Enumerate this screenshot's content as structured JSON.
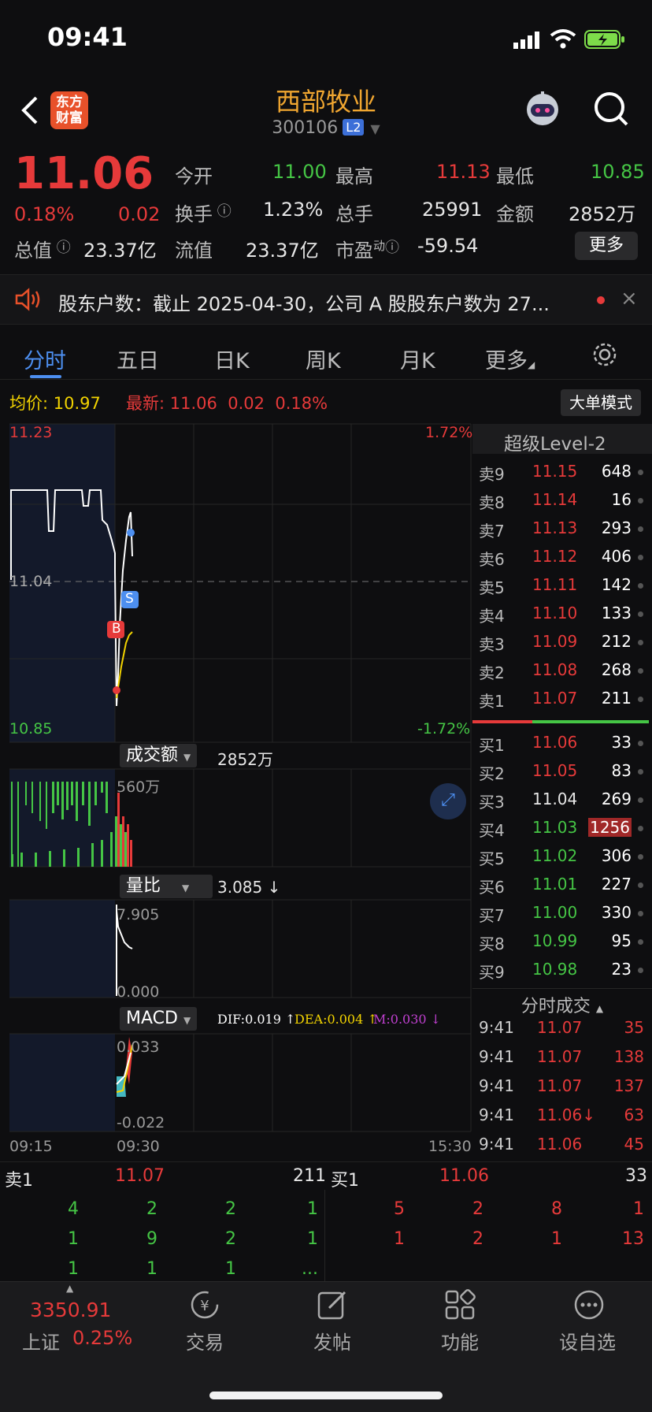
{
  "status": {
    "time": "09:41"
  },
  "header": {
    "logo_text": "东方财富",
    "title": "西部牧业",
    "code": "300106",
    "badge": "L2"
  },
  "quote": {
    "price": "11.06",
    "change_pct": "0.18%",
    "change": "0.02",
    "open_label": "今开",
    "open": "11.00",
    "high_label": "最高",
    "high": "11.13",
    "low_label": "最低",
    "low": "10.85",
    "turnover_label": "换手",
    "turnover": "1.23%",
    "volume_label": "总手",
    "volume": "25991",
    "amount_label": "金额",
    "amount": "2852万",
    "mktcap_label": "总值",
    "mktcap": "23.37亿",
    "float_label": "流值",
    "float": "23.37亿",
    "pe_label": "市盈",
    "pe_sup": "动",
    "pe": "-59.54",
    "more": "更多"
  },
  "notice": {
    "text": "股东户数：截止 2025-04-30，公司 A 股股东户数为 27..."
  },
  "tabs": [
    "分时",
    "五日",
    "日K",
    "周K",
    "月K",
    "更多"
  ],
  "infobar": {
    "avg_label": "均价:",
    "avg": "10.97",
    "latest_label": "最新:",
    "latest": "11.06",
    "chg": "0.02",
    "pct": "0.18%",
    "mode_btn": "大单模式"
  },
  "chart": {
    "y_top": "11.23",
    "y_mid": "11.04",
    "y_bot": "10.85",
    "pct_top": "1.72%",
    "pct_bot": "-1.72%",
    "vol_selector": "成交额",
    "vol_value": "2852万",
    "vol_axis": "560万",
    "ratio_selector": "量比",
    "ratio_value": "3.085 ↓",
    "ratio_top": "7.905",
    "ratio_bot": "0.000",
    "macd_selector": "MACD",
    "dif": "DIF:0.019 ↑",
    "dea": "DEA:0.004 ↑",
    "m": "M:0.030 ↓",
    "macd_top": "0.033",
    "macd_bot": "-0.022",
    "t_start": "09:15",
    "t_open": "09:30",
    "t_end": "15:30",
    "marker_b": "B",
    "marker_s": "S"
  },
  "level2": {
    "title": "超级Level-2",
    "asks": [
      {
        "label": "卖9",
        "price": "11.15",
        "vol": "648"
      },
      {
        "label": "卖8",
        "price": "11.14",
        "vol": "16"
      },
      {
        "label": "卖7",
        "price": "11.13",
        "vol": "293"
      },
      {
        "label": "卖6",
        "price": "11.12",
        "vol": "406"
      },
      {
        "label": "卖5",
        "price": "11.11",
        "vol": "142"
      },
      {
        "label": "卖4",
        "price": "11.10",
        "vol": "133"
      },
      {
        "label": "卖3",
        "price": "11.09",
        "vol": "212"
      },
      {
        "label": "卖2",
        "price": "11.08",
        "vol": "268"
      },
      {
        "label": "卖1",
        "price": "11.07",
        "vol": "211"
      }
    ],
    "bids": [
      {
        "label": "买1",
        "price": "11.06",
        "vol": "33"
      },
      {
        "label": "买2",
        "price": "11.05",
        "vol": "83"
      },
      {
        "label": "买3",
        "price": "11.04",
        "vol": "269"
      },
      {
        "label": "买4",
        "price": "11.03",
        "vol": "1256"
      },
      {
        "label": "买5",
        "price": "11.02",
        "vol": "306"
      },
      {
        "label": "买6",
        "price": "11.01",
        "vol": "227"
      },
      {
        "label": "买7",
        "price": "11.00",
        "vol": "330"
      },
      {
        "label": "买8",
        "price": "10.99",
        "vol": "95"
      },
      {
        "label": "买9",
        "price": "10.98",
        "vol": "23"
      }
    ],
    "ticks_title": "分时成交",
    "ticks": [
      {
        "t": "9:41",
        "p": "11.07",
        "v": "35"
      },
      {
        "t": "9:41",
        "p": "11.07",
        "v": "138"
      },
      {
        "t": "9:41",
        "p": "11.07",
        "v": "137"
      },
      {
        "t": "9:41",
        "p": "11.06↓",
        "v": "63"
      },
      {
        "t": "9:41",
        "p": "11.06",
        "v": "45"
      }
    ]
  },
  "queue": {
    "sell_label": "卖1",
    "sell_price": "11.07",
    "sell_vol": "211",
    "buy_label": "买1",
    "buy_price": "11.06",
    "buy_vol": "33",
    "sell_rows": [
      [
        "4",
        "2",
        "2",
        "1"
      ],
      [
        "1",
        "9",
        "2",
        "1"
      ],
      [
        "1",
        "1",
        "1",
        "..."
      ]
    ],
    "buy_rows": [
      [
        "5",
        "2",
        "8",
        "1"
      ],
      [
        "1",
        "2",
        "1",
        "13"
      ]
    ]
  },
  "tabbar": {
    "index_value": "3350.91",
    "index_name": "上证",
    "index_pct": "0.25%",
    "items": [
      "交易",
      "发帖",
      "功能",
      "设自选"
    ]
  }
}
